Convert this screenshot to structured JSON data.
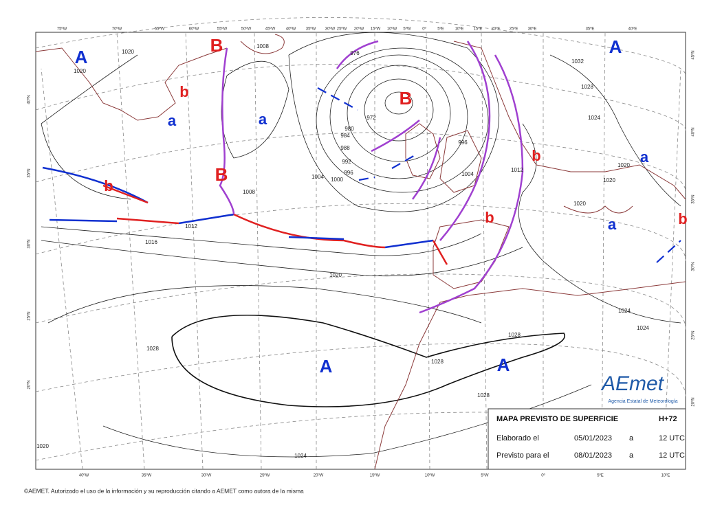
{
  "top_axis": [
    "75ºW",
    "70ºW",
    "65ºW",
    "60ºW",
    "55ºW",
    "50ºW",
    "45ºW",
    "40ºW",
    "35ºW",
    "30ºW",
    "25ºW",
    "20ºW",
    "15ºW",
    "10ºW",
    "5ºW",
    "0º",
    "5ºE",
    "10ºE",
    "15ºE",
    "20ºE",
    "25ºE",
    "30ºE",
    "35ºE",
    "40ºE"
  ],
  "bottom_axis": [
    "40ºW",
    "35ºW",
    "30ºW",
    "25ºW",
    "20ºW",
    "15ºW",
    "10ºW",
    "5ºW",
    "0º",
    "5ºE",
    "10ºE"
  ],
  "left_axis": [
    "40ºN",
    "35ºN",
    "30ºN",
    "25ºN",
    "20ºN"
  ],
  "right_axis": [
    "45ºN",
    "40ºN",
    "35ºN",
    "30ºN",
    "25ºN",
    "20ºN"
  ],
  "pressure_centers": [
    "A",
    "B",
    "b",
    "a",
    "a",
    "B",
    "B",
    "b",
    "b",
    "a",
    "b",
    "a",
    "b",
    "A",
    "A",
    "A"
  ],
  "isobar_labels": [
    "1020",
    "1020",
    "1008",
    "976",
    "972",
    "980",
    "984",
    "988",
    "992",
    "996",
    "1000",
    "1004",
    "1008",
    "1012",
    "1016",
    "1020",
    "1028",
    "1024",
    "1028",
    "1028",
    "1028",
    "1024",
    "1024",
    "1012",
    "1004",
    "996",
    "1028",
    "1032",
    "1024",
    "1020",
    "1020",
    "1020",
    "1020"
  ],
  "info_box": {
    "title": "MAPA PREVISTO DE SUPERFICIE",
    "step": "H+72",
    "rows": [
      [
        "Elaborado el",
        "05/01/2023",
        "a",
        "12 UTC"
      ],
      [
        "Previsto para el",
        "08/01/2023",
        "a",
        "12 UTC"
      ]
    ]
  },
  "logo": {
    "name": "AEmet",
    "subtitle": "Agencia Estatal de Meteorología"
  },
  "footer": "©AEMET. Autorizado el uso de la información y su reproducción citando a AEMET como autora de la misma"
}
